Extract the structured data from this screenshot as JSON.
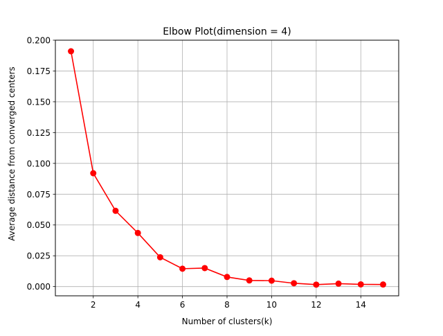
{
  "chart_data": {
    "type": "line",
    "title": "Elbow Plot(dimension = 4)",
    "xlabel": "Number of clusters(k)",
    "ylabel": "Average distance from converged centers",
    "xlim": [
      0.3,
      15.7
    ],
    "ylim": [
      -0.0075,
      0.2
    ],
    "xticks": [
      2,
      4,
      6,
      8,
      10,
      12,
      14
    ],
    "xtick_labels": [
      "2",
      "4",
      "6",
      "8",
      "10",
      "12",
      "14"
    ],
    "yticks": [
      0.0,
      0.025,
      0.05,
      0.075,
      0.1,
      0.125,
      0.15,
      0.175,
      0.2
    ],
    "ytick_labels": [
      "0.000",
      "0.025",
      "0.050",
      "0.075",
      "0.100",
      "0.125",
      "0.150",
      "0.175",
      "0.200"
    ],
    "grid": true,
    "series": [
      {
        "color": "#ff0000",
        "marker": "circle",
        "x": [
          1,
          2,
          3,
          4,
          5,
          6,
          7,
          8,
          9,
          10,
          11,
          12,
          13,
          14,
          15
        ],
        "y": [
          0.191,
          0.092,
          0.0615,
          0.0435,
          0.0238,
          0.0145,
          0.015,
          0.0078,
          0.005,
          0.0048,
          0.0027,
          0.0016,
          0.0024,
          0.0018,
          0.0017
        ]
      }
    ]
  }
}
